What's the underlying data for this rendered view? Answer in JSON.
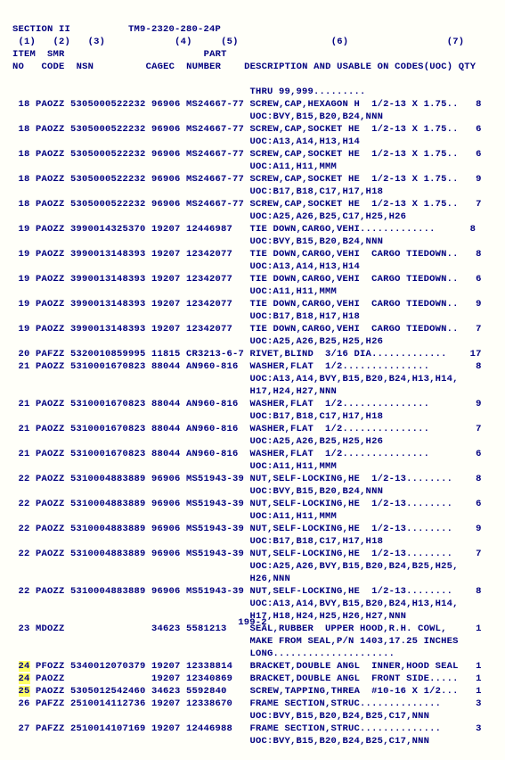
{
  "meta": {
    "section": "SECTION II",
    "tm": "TM9-2320-280-24P",
    "page": "199-2"
  },
  "cols": {
    "c1": "(1)",
    "c2": "(2)",
    "c3": "(3)",
    "c4": "(4)",
    "c5": "(5)",
    "c6": "(6)",
    "c7": "(7)",
    "h_item": "ITEM",
    "h_smr": "SMR",
    "h_nsn": "NSN",
    "h_cagec": "CAGEC",
    "h_part": "PART",
    "h_number": "NUMBER",
    "h_no": "NO",
    "h_code": "CODE",
    "h_desc": "DESCRIPTION AND USABLE ON CODES(UOC)",
    "h_qty": "QTY"
  },
  "lines": [
    {
      "t": "                                         THRU 99,999........."
    },
    {
      "t": " 18 PAOZZ 5305000522232 96906 MS24667-77 SCREW,CAP,HEXAGON H  1/2-13 X 1.75..   8"
    },
    {
      "t": "                                         UOC:BVY,B15,B20,B24,NNN"
    },
    {
      "t": " 18 PAOZZ 5305000522232 96906 MS24667-77 SCREW,CAP,SOCKET HE  1/2-13 X 1.75..   6"
    },
    {
      "t": "                                         UOC:A13,A14,H13,H14"
    },
    {
      "t": " 18 PAOZZ 5305000522232 96906 MS24667-77 SCREW,CAP,SOCKET HE  1/2-13 X 1.75..   6"
    },
    {
      "t": "                                         UOC:A11,H11,MMM"
    },
    {
      "t": " 18 PAOZZ 5305000522232 96906 MS24667-77 SCREW,CAP,SOCKET HE  1/2-13 X 1.75..   9"
    },
    {
      "t": "                                         UOC:B17,B18,C17,H17,H18"
    },
    {
      "t": " 18 PAOZZ 5305000522232 96906 MS24667-77 SCREW,CAP,SOCKET HE  1/2-13 X 1.75..   7"
    },
    {
      "t": "                                         UOC:A25,A26,B25,C17,H25,H26"
    },
    {
      "t": " 19 PAOZZ 3990014325370 19207 12446987   TIE DOWN,CARGO,VEHI.............      8"
    },
    {
      "t": "                                         UOC:BVY,B15,B20,B24,NNN"
    },
    {
      "t": " 19 PAOZZ 3990013148393 19207 12342077   TIE DOWN,CARGO,VEHI  CARGO TIEDOWN..   8"
    },
    {
      "t": "                                         UOC:A13,A14,H13,H14"
    },
    {
      "t": " 19 PAOZZ 3990013148393 19207 12342077   TIE DOWN,CARGO,VEHI  CARGO TIEDOWN..   6"
    },
    {
      "t": "                                         UOC:A11,H11,MMM"
    },
    {
      "t": " 19 PAOZZ 3990013148393 19207 12342077   TIE DOWN,CARGO,VEHI  CARGO TIEDOWN..   9"
    },
    {
      "t": "                                         UOC:B17,B18,H17,H18"
    },
    {
      "t": " 19 PAOZZ 3990013148393 19207 12342077   TIE DOWN,CARGO,VEHI  CARGO TIEDOWN..   7"
    },
    {
      "t": "                                         UOC:A25,A26,B25,H25,H26"
    },
    {
      "t": " 20 PAFZZ 5320010859995 11815 CR3213-6-7 RIVET,BLIND  3/16 DIA.............    17"
    },
    {
      "t": " 21 PAOZZ 5310001670823 88044 AN960-816  WASHER,FLAT  1/2...............        8"
    },
    {
      "t": "                                         UOC:A13,A14,BVY,B15,B20,B24,H13,H14,"
    },
    {
      "t": "                                         H17,H24,H27,NNN"
    },
    {
      "t": " 21 PAOZZ 5310001670823 88044 AN960-816  WASHER,FLAT  1/2...............        9"
    },
    {
      "t": "                                         UOC:B17,B18,C17,H17,H18"
    },
    {
      "t": " 21 PAOZZ 5310001670823 88044 AN960-816  WASHER,FLAT  1/2...............        7"
    },
    {
      "t": "                                         UOC:A25,A26,B25,H25,H26"
    },
    {
      "t": " 21 PAOZZ 5310001670823 88044 AN960-816  WASHER,FLAT  1/2...............        6"
    },
    {
      "t": "                                         UOC:A11,H11,MMM"
    },
    {
      "t": " 22 PAOZZ 5310004883889 96906 MS51943-39 NUT,SELF-LOCKING,HE  1/2-13........    8"
    },
    {
      "t": "                                         UOC:BVY,B15,B20,B24,NNN"
    },
    {
      "t": " 22 PAOZZ 5310004883889 96906 MS51943-39 NUT,SELF-LOCKING,HE  1/2-13........    6"
    },
    {
      "t": "                                         UOC:A11,H11,MMM"
    },
    {
      "t": " 22 PAOZZ 5310004883889 96906 MS51943-39 NUT,SELF-LOCKING,HE  1/2-13........    9"
    },
    {
      "t": "                                         UOC:B17,B18,C17,H17,H18"
    },
    {
      "t": " 22 PAOZZ 5310004883889 96906 MS51943-39 NUT,SELF-LOCKING,HE  1/2-13........    7"
    },
    {
      "t": "                                         UOC:A25,A26,BVY,B15,B20,B24,B25,H25,"
    },
    {
      "t": "                                         H26,NNN"
    },
    {
      "t": " 22 PAOZZ 5310004883889 96906 MS51943-39 NUT,SELF-LOCKING,HE  1/2-13........    8"
    },
    {
      "t": "                                         UOC:A13,A14,BVY,B15,B20,B24,H13,H14,"
    },
    {
      "t": "                                         H17,H18,H24,H25,H26,H27,NNN"
    },
    {
      "t": " 23 MDOZZ               34623 5581213    SEAL,RUBBER  UPPER HOOD,R.H. COWL,     1"
    },
    {
      "t": "                                         MAKE FROM SEAL,P/N 1403,17.25 INCHES"
    },
    {
      "t": "                                         LONG....................."
    },
    {
      "t": " 24 PFOZZ 5340012070379 19207 12338814   BRACKET,DOUBLE ANGL  INNER,HOOD SEAL   1",
      "hl": "24"
    },
    {
      "t": " 24 PAOZZ               19207 12340869   BRACKET,DOUBLE ANGL  FRONT SIDE.....   1",
      "hl": "24"
    },
    {
      "t": " 25 PAOZZ 5305012542460 34623 5592840    SCREW,TAPPING,THREA  #10-16 X 1/2...   1",
      "hl": "25"
    },
    {
      "t": " 26 PAFZZ 2510014112736 19207 12338670   FRAME SECTION,STRUC..............      3"
    },
    {
      "t": "                                         UOC:BVY,B15,B20,B24,B25,C17,NNN"
    },
    {
      "t": " 27 PAFZZ 2510014107169 19207 12446988   FRAME SECTION,STRUC..............      3"
    },
    {
      "t": "                                         UOC:BVY,B15,B20,B24,B25,C17,NNN"
    }
  ]
}
